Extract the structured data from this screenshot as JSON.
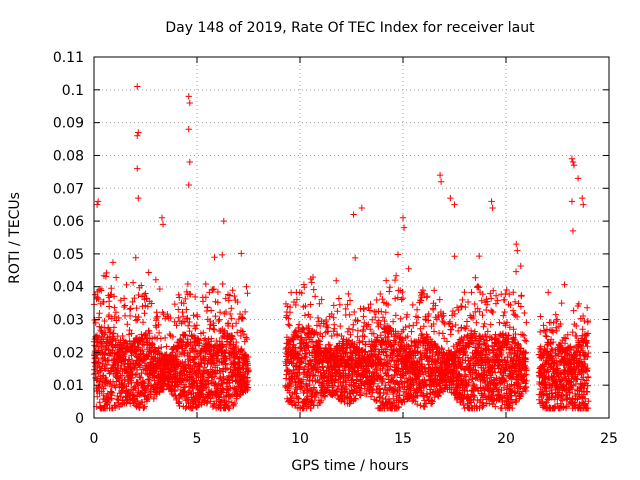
{
  "chart_data": {
    "type": "scatter",
    "title": "Day 148 of 2019, Rate Of TEC Index for receiver laut",
    "xlabel": "GPS time / hours",
    "ylabel": "ROTI / TECUs",
    "xlim": [
      0,
      25
    ],
    "ylim": [
      0,
      0.11
    ],
    "xticks": [
      0,
      5,
      10,
      15,
      20,
      25
    ],
    "xtick_labels": [
      "0",
      "5",
      "10",
      "15",
      "20",
      "25"
    ],
    "yticks": [
      0,
      0.01,
      0.02,
      0.03,
      0.04,
      0.05,
      0.06,
      0.07,
      0.08,
      0.09,
      0.1,
      0.11
    ],
    "ytick_labels": [
      "0",
      "0.01",
      "0.02",
      "0.03",
      "0.04",
      "0.05",
      "0.06",
      "0.07",
      "0.08",
      "0.09",
      "0.1",
      "0.11"
    ],
    "grid": true,
    "marker": "+",
    "color": "#ff0000",
    "series": [
      {
        "name": "ROTI",
        "segments": [
          {
            "x_start": 0.0,
            "x_end": 7.5,
            "base": 0.014,
            "spread": 0.022
          },
          {
            "x_start": 9.3,
            "x_end": 21.0,
            "base": 0.014,
            "spread": 0.022
          },
          {
            "x_start": 21.6,
            "x_end": 24.0,
            "base": 0.012,
            "spread": 0.016
          }
        ],
        "outliers": [
          [
            2.1,
            0.101
          ],
          [
            2.15,
            0.087
          ],
          [
            2.1,
            0.086
          ],
          [
            2.1,
            0.076
          ],
          [
            2.15,
            0.067
          ],
          [
            4.6,
            0.098
          ],
          [
            4.65,
            0.096
          ],
          [
            4.6,
            0.088
          ],
          [
            4.65,
            0.078
          ],
          [
            4.6,
            0.071
          ],
          [
            0.2,
            0.066
          ],
          [
            0.15,
            0.065
          ],
          [
            3.3,
            0.061
          ],
          [
            3.35,
            0.059
          ],
          [
            6.3,
            0.06
          ],
          [
            13.0,
            0.064
          ],
          [
            12.6,
            0.062
          ],
          [
            15.0,
            0.061
          ],
          [
            15.05,
            0.058
          ],
          [
            16.8,
            0.074
          ],
          [
            16.85,
            0.072
          ],
          [
            17.3,
            0.067
          ],
          [
            17.5,
            0.065
          ],
          [
            19.3,
            0.066
          ],
          [
            19.35,
            0.064
          ],
          [
            20.5,
            0.053
          ],
          [
            20.55,
            0.051
          ],
          [
            23.2,
            0.079
          ],
          [
            23.25,
            0.078
          ],
          [
            23.3,
            0.077
          ],
          [
            23.5,
            0.073
          ],
          [
            23.7,
            0.067
          ],
          [
            23.75,
            0.065
          ],
          [
            23.2,
            0.066
          ],
          [
            23.25,
            0.057
          ],
          [
            7.4,
            0.04
          ],
          [
            7.45,
            0.038
          ],
          [
            9.4,
            0.034
          ],
          [
            22.7,
            0.035
          ]
        ]
      }
    ]
  }
}
